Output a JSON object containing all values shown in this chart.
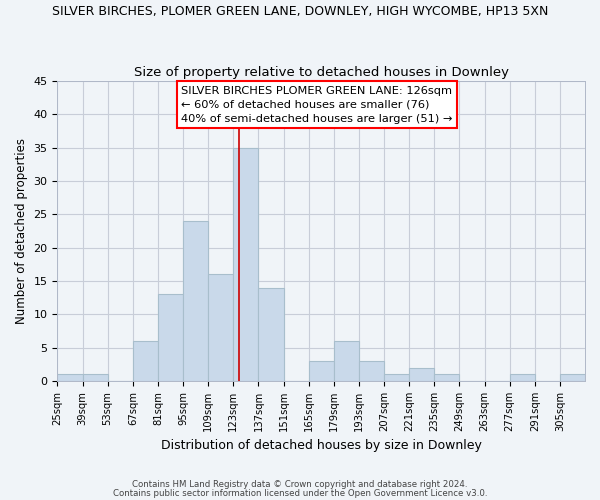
{
  "title": "SILVER BIRCHES, PLOMER GREEN LANE, DOWNLEY, HIGH WYCOMBE, HP13 5XN",
  "subtitle": "Size of property relative to detached houses in Downley",
  "xlabel": "Distribution of detached houses by size in Downley",
  "ylabel": "Number of detached properties",
  "bin_edges": [
    25,
    39,
    53,
    67,
    81,
    95,
    109,
    123,
    137,
    151,
    165,
    179,
    193,
    207,
    221,
    235,
    249,
    263,
    277,
    291,
    305
  ],
  "bin_labels": [
    "25sqm",
    "39sqm",
    "53sqm",
    "67sqm",
    "81sqm",
    "95sqm",
    "109sqm",
    "123sqm",
    "137sqm",
    "151sqm",
    "165sqm",
    "179sqm",
    "193sqm",
    "207sqm",
    "221sqm",
    "235sqm",
    "249sqm",
    "263sqm",
    "277sqm",
    "291sqm",
    "305sqm"
  ],
  "counts": [
    1,
    1,
    0,
    6,
    13,
    24,
    16,
    35,
    14,
    0,
    3,
    6,
    3,
    1,
    2,
    1,
    0,
    0,
    1,
    0,
    1
  ],
  "bar_color": "#c9d9ea",
  "bar_edge_color": "#a8becc",
  "vline_x": 126,
  "vline_color": "#cc0000",
  "ylim": [
    0,
    45
  ],
  "yticks": [
    0,
    5,
    10,
    15,
    20,
    25,
    30,
    35,
    40,
    45
  ],
  "annotation_line1": "SILVER BIRCHES PLOMER GREEN LANE: 126sqm",
  "annotation_line2": "← 60% of detached houses are smaller (76)",
  "annotation_line3": "40% of semi-detached houses are larger (51) →",
  "footnote1": "Contains HM Land Registry data © Crown copyright and database right 2024.",
  "footnote2": "Contains public sector information licensed under the Open Government Licence v3.0.",
  "background_color": "#f0f4f8",
  "plot_bg_color": "#f0f4f8",
  "grid_color": "#c8cdd8"
}
